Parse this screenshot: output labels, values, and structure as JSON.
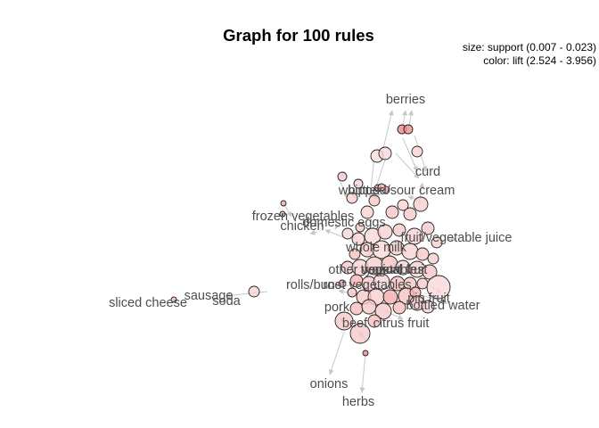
{
  "graph": {
    "title": "Graph for 100 rules",
    "legend": {
      "size": "size: support (0.007 - 0.023)",
      "color": "color: lift (2.524 - 3.956)"
    },
    "item_labels": [
      "berries",
      "curd",
      "whipped/sour cream",
      "butter",
      "frozen vegetables",
      "domestic eggs",
      "chicken",
      "fruit/vegetable juice",
      "whole milk",
      "other vegetables",
      "yogurt",
      "tropical fruit",
      "root vegetables",
      "rolls/buns",
      "sausage",
      "soda",
      "sliced cheese",
      "pork",
      "bottled water",
      "pip fruit",
      "beef",
      "citrus fruit",
      "onions",
      "herbs"
    ],
    "colors": {
      "lift_low": "#fbe8e8",
      "lift_high": "#f08080",
      "edge": "#c7c7c7",
      "label": "#4d4d4d"
    }
  }
}
